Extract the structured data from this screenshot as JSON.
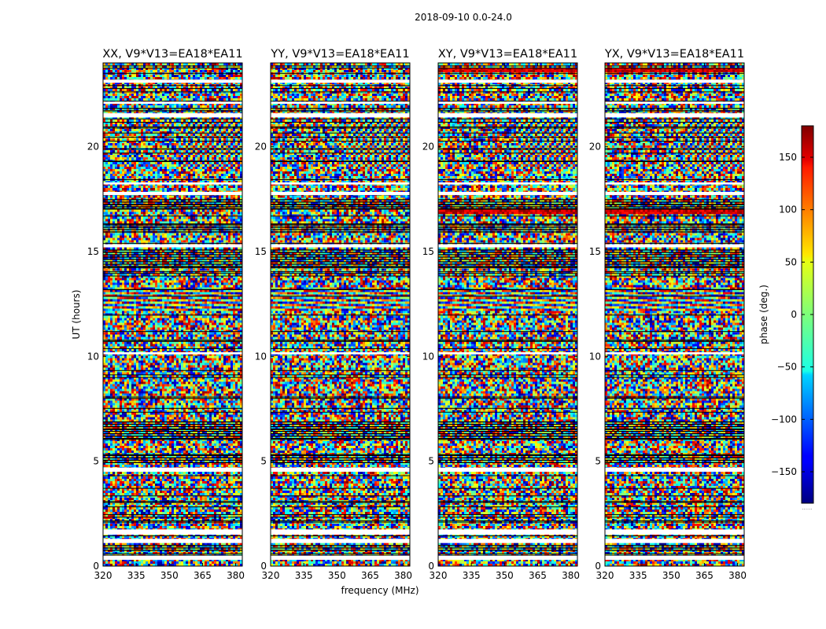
{
  "suptitle": "2018-09-10 0.0-24.0",
  "colorbar": {
    "label": "phase (deg.)",
    "min": -180,
    "max": 180,
    "ticks": [
      150,
      100,
      50,
      0,
      -50,
      -100,
      -150
    ],
    "tick_labels": [
      "150",
      "100",
      "50",
      "0",
      "−50",
      "−100",
      "−150"
    ],
    "colormap": "jet",
    "footer_mark": "......"
  },
  "chart_data": {
    "type": "heatmap",
    "xlabel": "frequency (MHz)",
    "ylabel": "UT (hours)",
    "xlim": [
      320,
      383
    ],
    "ylim": [
      0,
      24
    ],
    "x_ticks": [
      320,
      335,
      350,
      365,
      380
    ],
    "x_tick_labels": [
      "320",
      "335",
      "350",
      "365",
      "380"
    ],
    "y_ticks": [
      0,
      5,
      10,
      15,
      20
    ],
    "y_tick_labels": [
      "0",
      "5",
      "10",
      "15",
      "20"
    ],
    "value": "phase (deg.)",
    "value_range": [
      -180,
      180
    ],
    "panels": [
      {
        "title": "XX, V9*V13=EA18*EA11",
        "polarization": "XX"
      },
      {
        "title": "YY, V9*V13=EA18*EA11",
        "polarization": "YY"
      },
      {
        "title": "XY, V9*V13=EA18*EA11",
        "polarization": "XY"
      },
      {
        "title": "YX, V9*V13=EA18*EA11",
        "polarization": "YX"
      }
    ],
    "flagged_bands_hours": [
      [
        0.3,
        0.5
      ],
      [
        1.1,
        1.3
      ],
      [
        1.5,
        1.75
      ],
      [
        4.5,
        4.7
      ],
      [
        10.1,
        10.2
      ],
      [
        15.2,
        15.35
      ],
      [
        17.7,
        17.85
      ],
      [
        18.2,
        18.3
      ],
      [
        21.4,
        21.6
      ],
      [
        22.05,
        22.15
      ],
      [
        23.05,
        23.2
      ]
    ],
    "dense_bands_hours": [
      [
        0.7,
        1.0
      ],
      [
        4.85,
        5.3
      ],
      [
        6.0,
        6.9
      ],
      [
        14.3,
        15.1
      ],
      [
        15.9,
        16.3
      ],
      [
        17.1,
        17.5
      ],
      [
        21.65,
        21.85
      ]
    ]
  }
}
